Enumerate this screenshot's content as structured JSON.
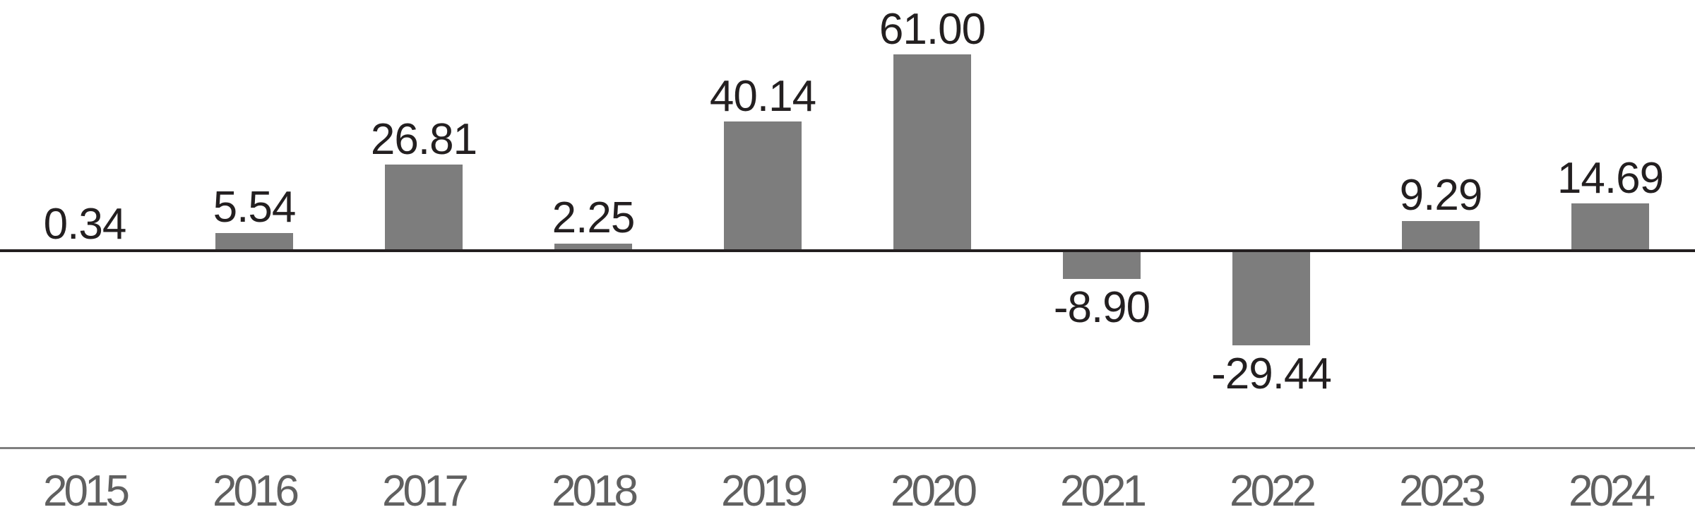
{
  "chart_data": {
    "type": "bar",
    "title": "",
    "xlabel": "",
    "ylabel": "",
    "categories": [
      "2015",
      "2016",
      "2017",
      "2018",
      "2019",
      "2020",
      "2021",
      "2022",
      "2023",
      "2024"
    ],
    "values": [
      0.34,
      5.54,
      26.81,
      2.25,
      40.14,
      61.0,
      -8.9,
      -29.44,
      9.29,
      14.69
    ],
    "value_labels": [
      "0.34",
      "5.54",
      "26.81",
      "2.25",
      "40.14",
      "61.00",
      "-8.90",
      "-29.44",
      "9.29",
      "14.69"
    ],
    "legend_position": "none",
    "grid": false,
    "axes": {
      "y_ticks_visible": false,
      "zero_line_visible": true,
      "category_baseline_visible": true,
      "value_labels_on_bars": true
    },
    "colors": {
      "bar": "#7d7d7d",
      "value_label": "#231f20",
      "zero_line": "#231f20",
      "category_line": "#7f7f7f",
      "category_label": "#606060",
      "background": "#ffffff"
    }
  }
}
